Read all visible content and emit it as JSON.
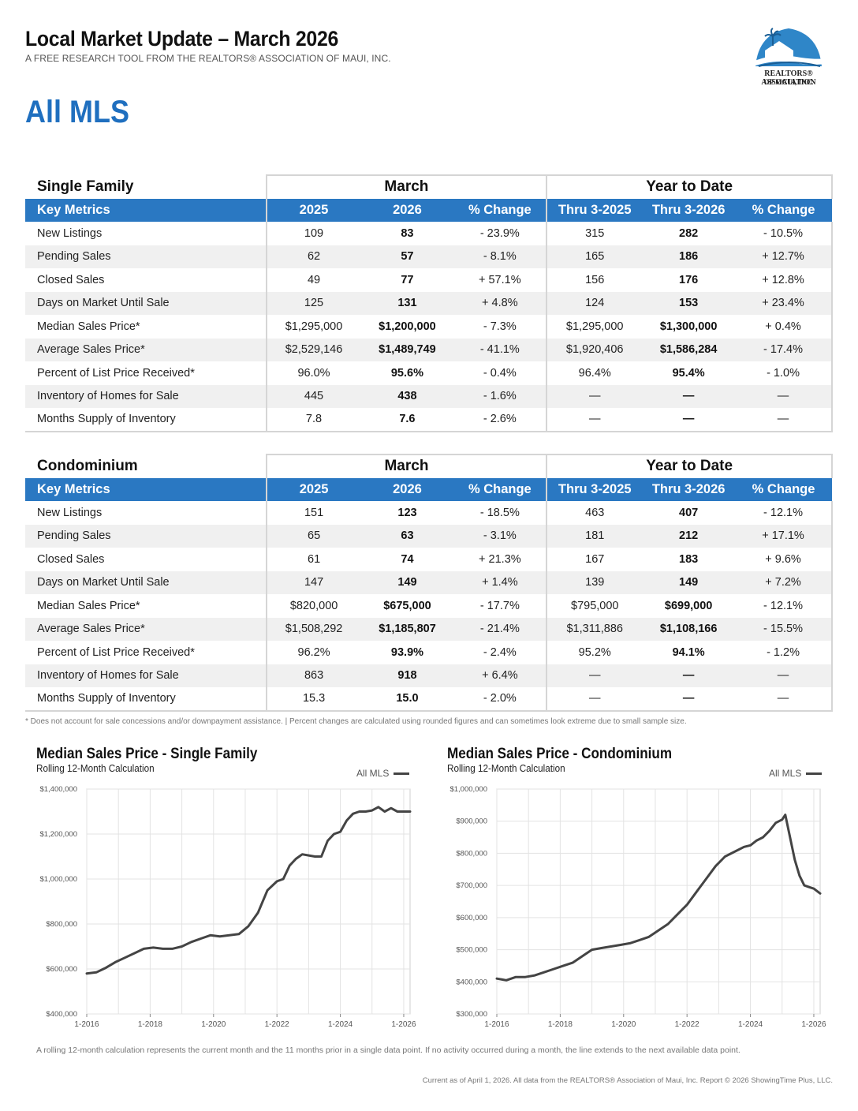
{
  "header": {
    "title": "Local Market Update – March 2026",
    "subtitle": "A FREE RESEARCH TOOL FROM THE REALTORS® ASSOCIATION OF MAUI, INC.",
    "area": "All MLS"
  },
  "logo": {
    "line1": "REALTORS® ASSOCIATION",
    "line2": "OF MAUI, INC."
  },
  "groups": {
    "month": "March",
    "ytd": "Year to Date"
  },
  "columns": [
    "Key Metrics",
    "2025",
    "2026",
    "% Change",
    "Thru 3-2025",
    "Thru 3-2026",
    "% Change"
  ],
  "single_family": {
    "title": "Single Family",
    "rows": [
      [
        "New Listings",
        "109",
        "83",
        "- 23.9%",
        "315",
        "282",
        "- 10.5%"
      ],
      [
        "Pending Sales",
        "62",
        "57",
        "- 8.1%",
        "165",
        "186",
        "+ 12.7%"
      ],
      [
        "Closed Sales",
        "49",
        "77",
        "+ 57.1%",
        "156",
        "176",
        "+ 12.8%"
      ],
      [
        "Days on Market Until Sale",
        "125",
        "131",
        "+ 4.8%",
        "124",
        "153",
        "+ 23.4%"
      ],
      [
        "Median Sales Price*",
        "$1,295,000",
        "$1,200,000",
        "- 7.3%",
        "$1,295,000",
        "$1,300,000",
        "+ 0.4%"
      ],
      [
        "Average Sales Price*",
        "$2,529,146",
        "$1,489,749",
        "- 41.1%",
        "$1,920,406",
        "$1,586,284",
        "- 17.4%"
      ],
      [
        "Percent of List Price Received*",
        "96.0%",
        "95.6%",
        "- 0.4%",
        "96.4%",
        "95.4%",
        "- 1.0%"
      ],
      [
        "Inventory of Homes for Sale",
        "445",
        "438",
        "- 1.6%",
        "—",
        "—",
        "—"
      ],
      [
        "Months Supply of Inventory",
        "7.8",
        "7.6",
        "- 2.6%",
        "—",
        "—",
        "—"
      ]
    ]
  },
  "condominium": {
    "title": "Condominium",
    "rows": [
      [
        "New Listings",
        "151",
        "123",
        "- 18.5%",
        "463",
        "407",
        "- 12.1%"
      ],
      [
        "Pending Sales",
        "65",
        "63",
        "- 3.1%",
        "181",
        "212",
        "+ 17.1%"
      ],
      [
        "Closed Sales",
        "61",
        "74",
        "+ 21.3%",
        "167",
        "183",
        "+ 9.6%"
      ],
      [
        "Days on Market Until Sale",
        "147",
        "149",
        "+ 1.4%",
        "139",
        "149",
        "+ 7.2%"
      ],
      [
        "Median Sales Price*",
        "$820,000",
        "$675,000",
        "- 17.7%",
        "$795,000",
        "$699,000",
        "- 12.1%"
      ],
      [
        "Average Sales Price*",
        "$1,508,292",
        "$1,185,807",
        "- 21.4%",
        "$1,311,886",
        "$1,108,166",
        "- 15.5%"
      ],
      [
        "Percent of List Price Received*",
        "96.2%",
        "93.9%",
        "- 2.4%",
        "95.2%",
        "94.1%",
        "- 1.2%"
      ],
      [
        "Inventory of Homes for Sale",
        "863",
        "918",
        "+ 6.4%",
        "—",
        "—",
        "—"
      ],
      [
        "Months Supply of Inventory",
        "15.3",
        "15.0",
        "- 2.0%",
        "—",
        "—",
        "—"
      ]
    ]
  },
  "footnote": "* Does not account for sale concessions and/or downpayment assistance. | Percent changes are calculated using rounded figures and can sometimes look extreme due to small sample size.",
  "chart_data": [
    {
      "type": "line",
      "title": "Median Sales Price - Single Family",
      "subtitle": "Rolling 12-Month Calculation",
      "legend": "All MLS",
      "legend_position": "top-right",
      "grid": true,
      "ylim": [
        400000,
        1400000
      ],
      "yticks": [
        400000,
        600000,
        800000,
        1000000,
        1200000,
        1400000
      ],
      "ytick_labels": [
        "$400,000",
        "$600,000",
        "$800,000",
        "$1,000,000",
        "$1,200,000",
        "$1,400,000"
      ],
      "xlim": [
        2016.0,
        2026.2
      ],
      "xticks": [
        2016,
        2018,
        2020,
        2022,
        2024,
        2026
      ],
      "xtick_labels": [
        "1-2016",
        "1-2018",
        "1-2020",
        "1-2022",
        "1-2024",
        "1-2026"
      ],
      "series": [
        {
          "name": "All MLS",
          "x": [
            2016.0,
            2016.3,
            2016.6,
            2016.9,
            2017.2,
            2017.5,
            2017.8,
            2018.1,
            2018.4,
            2018.7,
            2019.0,
            2019.3,
            2019.6,
            2019.9,
            2020.2,
            2020.5,
            2020.8,
            2021.1,
            2021.4,
            2021.7,
            2022.0,
            2022.2,
            2022.4,
            2022.6,
            2022.8,
            2023.0,
            2023.2,
            2023.4,
            2023.6,
            2023.8,
            2024.0,
            2024.2,
            2024.4,
            2024.6,
            2024.8,
            2025.0,
            2025.2,
            2025.4,
            2025.6,
            2025.8,
            2026.0,
            2026.2
          ],
          "values": [
            580000,
            585000,
            605000,
            630000,
            650000,
            670000,
            690000,
            695000,
            690000,
            690000,
            700000,
            720000,
            735000,
            750000,
            745000,
            750000,
            755000,
            790000,
            850000,
            950000,
            990000,
            1000000,
            1060000,
            1090000,
            1110000,
            1105000,
            1100000,
            1100000,
            1170000,
            1200000,
            1210000,
            1260000,
            1290000,
            1300000,
            1300000,
            1305000,
            1320000,
            1300000,
            1315000,
            1300000,
            1300000,
            1300000
          ]
        }
      ]
    },
    {
      "type": "line",
      "title": "Median Sales Price - Condominium",
      "subtitle": "Rolling 12-Month Calculation",
      "legend": "All MLS",
      "legend_position": "top-right",
      "grid": true,
      "ylim": [
        300000,
        1000000
      ],
      "yticks": [
        300000,
        400000,
        500000,
        600000,
        700000,
        800000,
        900000,
        1000000
      ],
      "ytick_labels": [
        "$300,000",
        "$400,000",
        "$500,000",
        "$600,000",
        "$700,000",
        "$800,000",
        "$900,000",
        "$1,000,000"
      ],
      "xlim": [
        2016.0,
        2026.2
      ],
      "xticks": [
        2016,
        2018,
        2020,
        2022,
        2024,
        2026
      ],
      "xtick_labels": [
        "1-2016",
        "1-2018",
        "1-2020",
        "1-2022",
        "1-2024",
        "1-2026"
      ],
      "series": [
        {
          "name": "All MLS",
          "x": [
            2016.0,
            2016.3,
            2016.6,
            2016.9,
            2017.2,
            2017.5,
            2017.8,
            2018.1,
            2018.4,
            2018.7,
            2019.0,
            2019.3,
            2019.6,
            2019.9,
            2020.2,
            2020.5,
            2020.8,
            2021.1,
            2021.4,
            2021.7,
            2022.0,
            2022.3,
            2022.6,
            2022.9,
            2023.2,
            2023.5,
            2023.8,
            2024.0,
            2024.2,
            2024.4,
            2024.6,
            2024.8,
            2025.0,
            2025.1,
            2025.25,
            2025.4,
            2025.55,
            2025.7,
            2025.85,
            2026.0,
            2026.2
          ],
          "values": [
            410000,
            405000,
            415000,
            415000,
            420000,
            430000,
            440000,
            450000,
            460000,
            480000,
            500000,
            505000,
            510000,
            515000,
            520000,
            530000,
            540000,
            560000,
            580000,
            610000,
            640000,
            680000,
            720000,
            760000,
            790000,
            805000,
            820000,
            825000,
            840000,
            850000,
            870000,
            895000,
            905000,
            920000,
            850000,
            780000,
            730000,
            700000,
            695000,
            690000,
            675000
          ]
        }
      ]
    }
  ],
  "bottom_note": "A rolling 12-month calculation represents the current month and the 11 months prior in a single data point. If no activity occurred during a month, the line extends to the next available data point.",
  "credit": "Current as of April 1, 2026. All data from the REALTORS® Association of Maui, Inc. Report © 2026 ShowingTime Plus, LLC.",
  "colors": {
    "accent": "#2a78c2",
    "area_title": "#1f6fbf",
    "line": "#444444"
  }
}
